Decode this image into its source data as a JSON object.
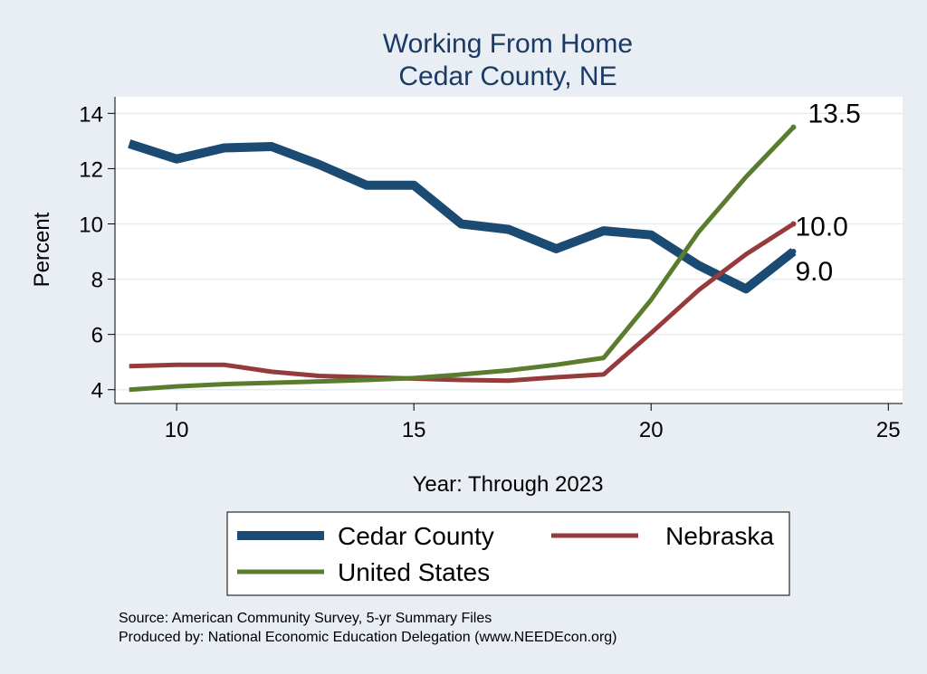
{
  "colors": {
    "background": "#e8eef3",
    "plot_background": "#ffffff",
    "grid": "#e6ecf0",
    "title": "#1a3a66"
  },
  "chart_data": {
    "type": "line",
    "title": "Working From Home",
    "subtitle": "Cedar County, NE",
    "xlabel": "Year: Through 2023",
    "ylabel": "Percent",
    "xlim": [
      8.7,
      25.3
    ],
    "ylim": [
      3.5,
      14.6
    ],
    "xticks": [
      10,
      15,
      20,
      25
    ],
    "yticks": [
      4,
      6,
      8,
      10,
      12,
      14
    ],
    "grid": true,
    "legend_position": "bottom",
    "x": [
      9,
      10,
      11,
      12,
      13,
      14,
      15,
      16,
      17,
      18,
      19,
      20,
      21,
      22,
      23
    ],
    "series": [
      {
        "name": "Cedar County",
        "color": "#1b4a73",
        "values": [
          12.9,
          12.35,
          12.75,
          12.8,
          12.15,
          11.4,
          11.4,
          10.0,
          9.8,
          9.1,
          9.75,
          9.6,
          8.5,
          7.65,
          9.0
        ],
        "end_label": "9.0"
      },
      {
        "name": "Nebraska",
        "color": "#963b3c",
        "values": [
          4.85,
          4.9,
          4.9,
          4.65,
          4.5,
          4.45,
          4.4,
          4.35,
          4.33,
          4.45,
          4.55,
          6.05,
          7.6,
          8.9,
          10.0
        ],
        "end_label": "10.0"
      },
      {
        "name": "United States",
        "color": "#5b7b2f",
        "values": [
          4.0,
          4.12,
          4.2,
          4.25,
          4.3,
          4.35,
          4.42,
          4.55,
          4.7,
          4.9,
          5.15,
          7.25,
          9.7,
          11.7,
          13.5
        ],
        "end_label": "13.5"
      }
    ],
    "source_lines": [
      "Source: American Community Survey, 5-yr Summary Files",
      "Produced by: National Economic Education Delegation (www.NEEDEcon.org)"
    ]
  }
}
